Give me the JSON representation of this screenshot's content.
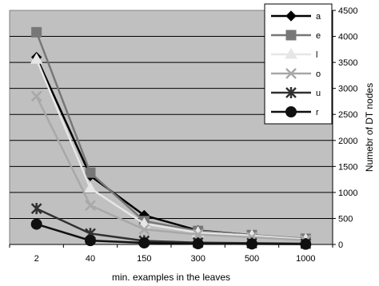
{
  "chart_data": {
    "type": "line",
    "title": "",
    "categories": [
      "2",
      "40",
      "150",
      "300",
      "500",
      "1000"
    ],
    "xlabel": "min. examples in the leaves",
    "ylabel": "Numebr of DT nodes",
    "ylim": [
      0,
      4500
    ],
    "yticks": [
      0,
      500,
      1000,
      1500,
      2000,
      2500,
      3000,
      3500,
      4000,
      4500
    ],
    "y_axis_side": "right",
    "grid": "horizontal",
    "plot_background": "#c0c0c0",
    "legend_position": "top-right",
    "series": [
      {
        "name": "a",
        "marker": "diamond",
        "color": "#000000",
        "values": [
          3600,
          1320,
          560,
          270,
          180,
          90
        ]
      },
      {
        "name": "e",
        "marker": "square",
        "color": "#777777",
        "values": [
          4080,
          1380,
          450,
          260,
          180,
          110
        ]
      },
      {
        "name": "l",
        "marker": "triangle",
        "color": "#e6e6e6",
        "values": [
          3560,
          1080,
          400,
          230,
          170,
          100
        ]
      },
      {
        "name": "o",
        "marker": "x",
        "color": "#a8a8a8",
        "values": [
          2850,
          750,
          290,
          190,
          140,
          80
        ]
      },
      {
        "name": "u",
        "marker": "star",
        "color": "#303030",
        "values": [
          690,
          210,
          70,
          35,
          25,
          15
        ]
      },
      {
        "name": "r",
        "marker": "circle",
        "color": "#101010",
        "values": [
          390,
          75,
          30,
          15,
          10,
          5
        ]
      }
    ]
  }
}
